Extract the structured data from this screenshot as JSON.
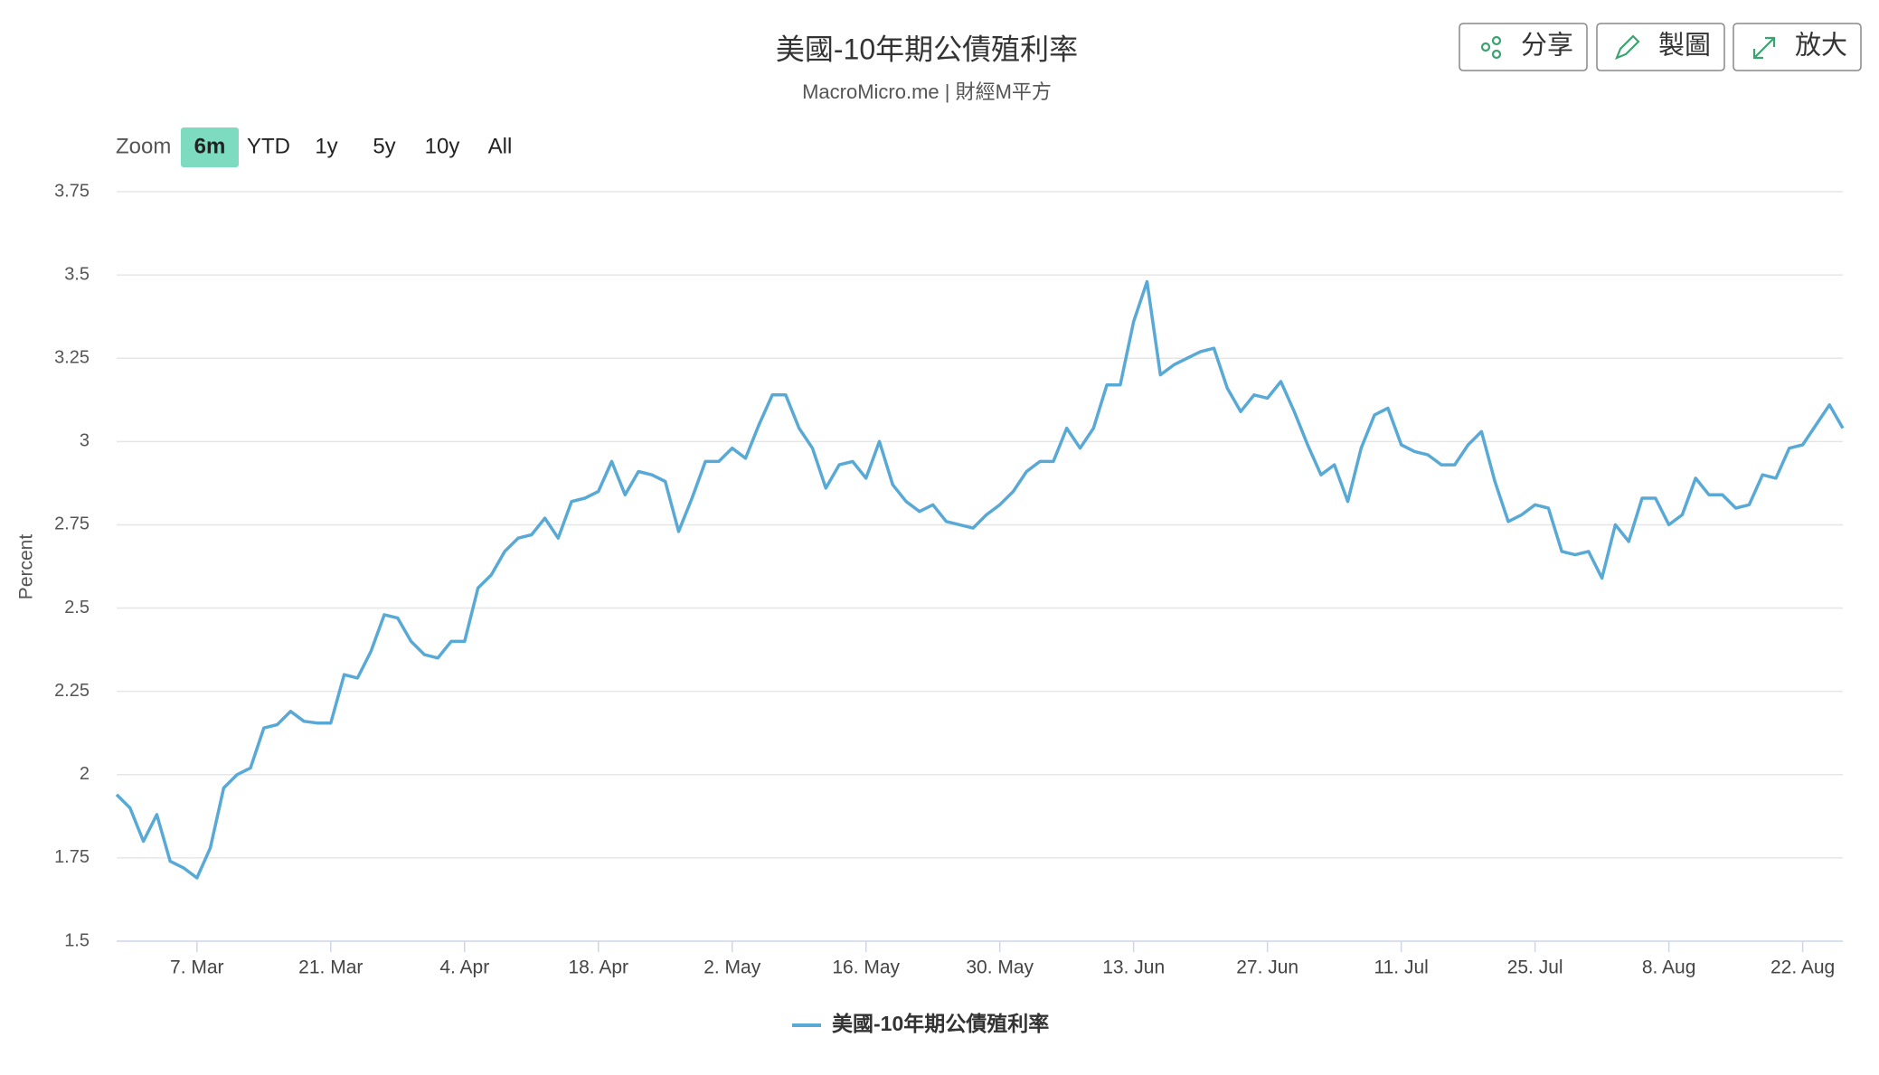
{
  "toolbar": {
    "buttons": [
      "分享",
      "製圖",
      "放大"
    ]
  },
  "zoom": {
    "label": "Zoom",
    "options": [
      "6m",
      "YTD",
      "1y",
      "5y",
      "10y",
      "All"
    ],
    "selected": 0
  },
  "chart_data": {
    "type": "line",
    "title": "美國-10年期公債殖利率",
    "subtitle": "MacroMicro.me | 財經M平方",
    "y_label": "Percent",
    "categories": [
      null,
      null,
      null,
      null,
      null,
      null,
      "7. Mar",
      null,
      null,
      null,
      null,
      null,
      null,
      null,
      null,
      null,
      "21. Mar",
      null,
      null,
      null,
      null,
      null,
      null,
      null,
      null,
      null,
      "4. Apr",
      null,
      null,
      null,
      null,
      null,
      null,
      null,
      null,
      null,
      "18. Apr",
      null,
      null,
      null,
      null,
      null,
      null,
      null,
      null,
      null,
      "2. May",
      null,
      null,
      null,
      null,
      null,
      null,
      null,
      null,
      null,
      "16. May",
      null,
      null,
      null,
      null,
      null,
      null,
      null,
      null,
      null,
      "30. May",
      null,
      null,
      null,
      null,
      null,
      null,
      null,
      null,
      null,
      "13. Jun",
      null,
      null,
      null,
      null,
      null,
      null,
      null,
      null,
      null,
      "27. Jun",
      null,
      null,
      null,
      null,
      null,
      null,
      null,
      null,
      null,
      "11. Jul",
      null,
      null,
      null,
      null,
      null,
      null,
      null,
      null,
      null,
      "25. Jul",
      null,
      null,
      null,
      null,
      null,
      null,
      null,
      null,
      null,
      "8. Aug",
      null,
      null,
      null,
      null,
      null,
      null,
      null,
      null,
      null,
      "22. Aug",
      null,
      null,
      null
    ],
    "series": [
      {
        "name": "美國-10年期公債殖利率",
        "color": "#58a9d5",
        "values": [
          1.94,
          1.9,
          1.8,
          1.88,
          1.74,
          1.72,
          1.69,
          1.78,
          1.96,
          2.0,
          2.02,
          2.14,
          2.15,
          2.19,
          2.16,
          2.155,
          2.155,
          2.3,
          2.29,
          2.37,
          2.48,
          2.47,
          2.4,
          2.36,
          2.35,
          2.4,
          2.4,
          2.56,
          2.6,
          2.67,
          2.71,
          2.72,
          2.77,
          2.71,
          2.82,
          2.83,
          2.85,
          2.94,
          2.84,
          2.91,
          2.9,
          2.88,
          2.73,
          2.83,
          2.94,
          2.94,
          2.98,
          2.95,
          3.05,
          3.14,
          3.14,
          3.04,
          2.98,
          2.86,
          2.93,
          2.94,
          2.89,
          3.0,
          2.87,
          2.82,
          2.79,
          2.81,
          2.76,
          2.75,
          2.74,
          2.78,
          2.81,
          2.85,
          2.91,
          2.94,
          2.94,
          3.04,
          2.98,
          3.04,
          3.17,
          3.17,
          3.36,
          3.48,
          3.2,
          3.23,
          3.25,
          3.27,
          3.28,
          3.16,
          3.09,
          3.14,
          3.13,
          3.18,
          3.09,
          2.99,
          2.9,
          2.93,
          2.82,
          2.98,
          3.08,
          3.1,
          2.99,
          2.97,
          2.96,
          2.93,
          2.93,
          2.99,
          3.03,
          2.88,
          2.76,
          2.78,
          2.81,
          2.8,
          2.67,
          2.66,
          2.67,
          2.59,
          2.75,
          2.7,
          2.83,
          2.83,
          2.75,
          2.78,
          2.89,
          2.84,
          2.84,
          2.8,
          2.81,
          2.9,
          2.89,
          2.98,
          2.99,
          3.05,
          3.11,
          3.04
        ]
      }
    ],
    "ylim": [
      1.5,
      3.75
    ],
    "yticks": [
      1.5,
      1.75,
      2,
      2.25,
      2.5,
      2.75,
      3,
      3.25,
      3.5,
      3.75
    ],
    "grid": true
  }
}
